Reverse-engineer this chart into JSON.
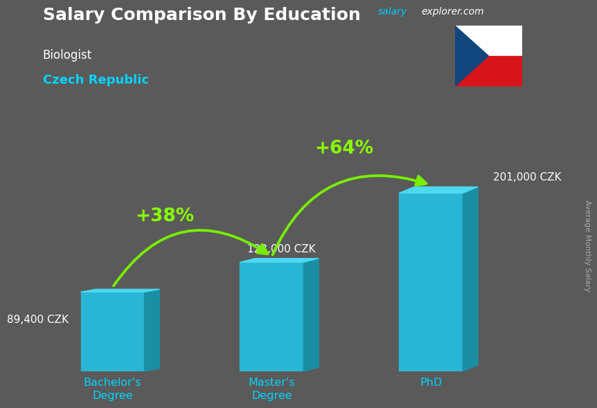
{
  "title": "Salary Comparison By Education",
  "subtitle": "Biologist",
  "country": "Czech Republic",
  "website_part1": "salary",
  "website_part2": "explorer.com",
  "ylabel": "Average Monthly Salary",
  "categories": [
    "Bachelor's\nDegree",
    "Master's\nDegree",
    "PhD"
  ],
  "values": [
    89400,
    123000,
    201000
  ],
  "value_labels": [
    "89,400 CZK",
    "123,000 CZK",
    "201,000 CZK"
  ],
  "pct_labels": [
    "+38%",
    "+64%"
  ],
  "bar_color_face": "#29b6d4",
  "bar_color_top": "#4dd9f0",
  "bar_color_side": "#1a8fa3",
  "arrow_color": "#77ee00",
  "bg_color": "#5a5a5a",
  "title_color": "#ffffff",
  "subtitle_color": "#ffffff",
  "country_color": "#00d4ff",
  "website1_color": "#00ccff",
  "website2_color": "#ffffff",
  "value_label_color": "#ffffff",
  "pct_label_color": "#88ff00",
  "xtick_color": "#00d4ff",
  "ylabel_color": "#aaaaaa",
  "bar_width": 0.42,
  "bar_depth_x": 0.1,
  "bar_depth_y_ratio": 0.035,
  "ylim": [
    0,
    260000
  ],
  "x_positions": [
    0.5,
    1.55,
    2.6
  ],
  "x_lim": [
    0,
    3.3
  ]
}
